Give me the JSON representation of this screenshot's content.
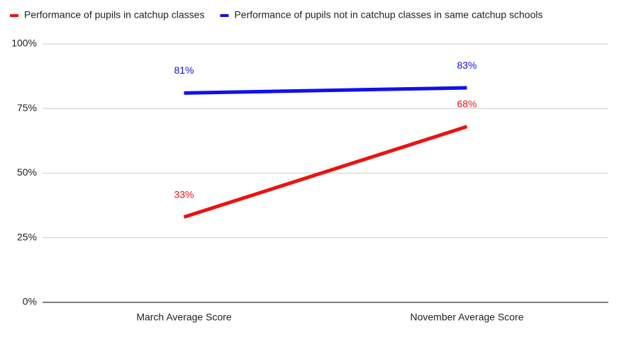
{
  "chart_data": {
    "type": "line",
    "categories": [
      "March Average Score",
      "November Average Score"
    ],
    "series": [
      {
        "name": "Performance of pupils in catchup classes",
        "color": "#ee1111",
        "values": [
          33,
          68
        ],
        "value_labels": [
          "33%",
          "68%"
        ]
      },
      {
        "name": "Performance of pupils not in catchup classes in same catchup schools",
        "color": "#1010ee",
        "values": [
          81,
          83
        ],
        "value_labels": [
          "81%",
          "83%"
        ]
      }
    ],
    "ylim": [
      0,
      100
    ],
    "yticks": [
      {
        "value": 0,
        "label": "0%"
      },
      {
        "value": 25,
        "label": "25%"
      },
      {
        "value": 50,
        "label": "50%"
      },
      {
        "value": 75,
        "label": "75%"
      },
      {
        "value": 100,
        "label": "100%"
      }
    ],
    "grid": true,
    "legend": "top"
  }
}
